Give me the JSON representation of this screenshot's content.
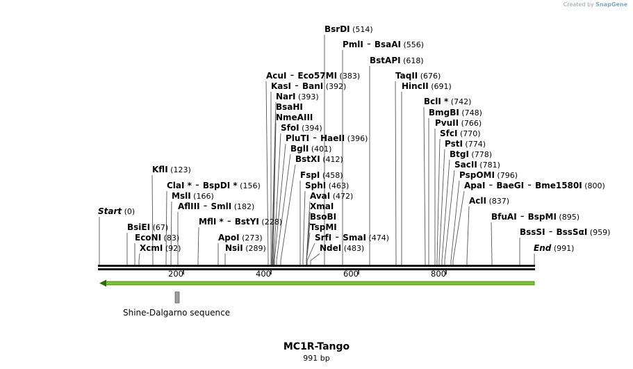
{
  "credit": {
    "prefix": "Created by",
    "brand": "SnapGene"
  },
  "sequence": {
    "name": "MC1R-Tango",
    "length_label": "991 bp"
  },
  "ruler_ticks": [
    "200",
    "400",
    "600",
    "800"
  ],
  "ends": [
    {
      "label": "Start",
      "pos": "(0)"
    },
    {
      "label": "End",
      "pos": "(991)"
    }
  ],
  "feature": {
    "name": "Shine-Dalgarno sequence"
  },
  "sites": [
    {
      "names": [
        "BsrDI"
      ],
      "pos": "(514)"
    },
    {
      "names": [
        "PmlI",
        "BsaAI"
      ],
      "pos": "(556)"
    },
    {
      "names": [
        "BstAPI"
      ],
      "pos": "(618)"
    },
    {
      "names": [
        "AcuI",
        "Eco57MI"
      ],
      "pos": "(383)"
    },
    {
      "names": [
        "TaqII"
      ],
      "pos": "(676)"
    },
    {
      "names": [
        "KasI",
        "BanI"
      ],
      "pos": "(392)"
    },
    {
      "names": [
        "HincII"
      ],
      "pos": "(691)"
    },
    {
      "names": [
        "NarI"
      ],
      "pos": "(393)"
    },
    {
      "names": [
        "BclI *"
      ],
      "pos": "(742)"
    },
    {
      "names": [
        "BsaHI"
      ],
      "pos": ""
    },
    {
      "names": [
        "BmgBI"
      ],
      "pos": "(748)"
    },
    {
      "names": [
        "NmeAIII"
      ],
      "pos": ""
    },
    {
      "names": [
        "PvuII"
      ],
      "pos": "(766)"
    },
    {
      "names": [
        "SfoI"
      ],
      "pos": "(394)"
    },
    {
      "names": [
        "SfcI"
      ],
      "pos": "(770)"
    },
    {
      "names": [
        "PluTI",
        "HaeII"
      ],
      "pos": "(396)"
    },
    {
      "names": [
        "PstI"
      ],
      "pos": "(774)"
    },
    {
      "names": [
        "BglI"
      ],
      "pos": "(401)"
    },
    {
      "names": [
        "BtgI"
      ],
      "pos": "(778)"
    },
    {
      "names": [
        "BstXI"
      ],
      "pos": "(412)"
    },
    {
      "names": [
        "SacII"
      ],
      "pos": "(781)"
    },
    {
      "names": [
        "KflI"
      ],
      "pos": "(123)"
    },
    {
      "names": [
        "FspI"
      ],
      "pos": "(458)"
    },
    {
      "names": [
        "PspOMI"
      ],
      "pos": "(796)"
    },
    {
      "names": [
        "ClaI *",
        "BspDI *"
      ],
      "pos": "(156)"
    },
    {
      "names": [
        "SphI"
      ],
      "pos": "(463)"
    },
    {
      "names": [
        "ApaI",
        "BaeGI",
        "Bme1580I"
      ],
      "pos": "(800)"
    },
    {
      "names": [
        "MslI"
      ],
      "pos": "(166)"
    },
    {
      "names": [
        "AvaI"
      ],
      "pos": "(472)"
    },
    {
      "names": [
        "AflIII",
        "SmlI"
      ],
      "pos": "(182)"
    },
    {
      "names": [
        "XmaI"
      ],
      "pos": ""
    },
    {
      "names": [
        "AclI"
      ],
      "pos": "(837)"
    },
    {
      "names": [
        "BsoBI"
      ],
      "pos": ""
    },
    {
      "names": [
        "MflI *",
        "BstYI"
      ],
      "pos": "(228)"
    },
    {
      "names": [
        "BfuAI",
        "BspMI"
      ],
      "pos": "(895)"
    },
    {
      "names": [
        "BsiEI"
      ],
      "pos": "(67)"
    },
    {
      "names": [
        "TspMI"
      ],
      "pos": ""
    },
    {
      "names": [
        "EcoNI"
      ],
      "pos": "(83)"
    },
    {
      "names": [
        "ApoI"
      ],
      "pos": "(273)"
    },
    {
      "names": [
        "SrfI",
        "SmaI"
      ],
      "pos": "(474)"
    },
    {
      "names": [
        "BssSI",
        "BssSαI"
      ],
      "pos": "(959)"
    },
    {
      "names": [
        "XcmI"
      ],
      "pos": "(92)"
    },
    {
      "names": [
        "NsiI"
      ],
      "pos": "(289)"
    },
    {
      "names": [
        "NdeI"
      ],
      "pos": "(483)"
    }
  ],
  "colors": {
    "arrow": "#7cc52c",
    "arrow_border": "#2e6b00",
    "feature_box": "#9e9e9e",
    "leader": "#555555"
  }
}
